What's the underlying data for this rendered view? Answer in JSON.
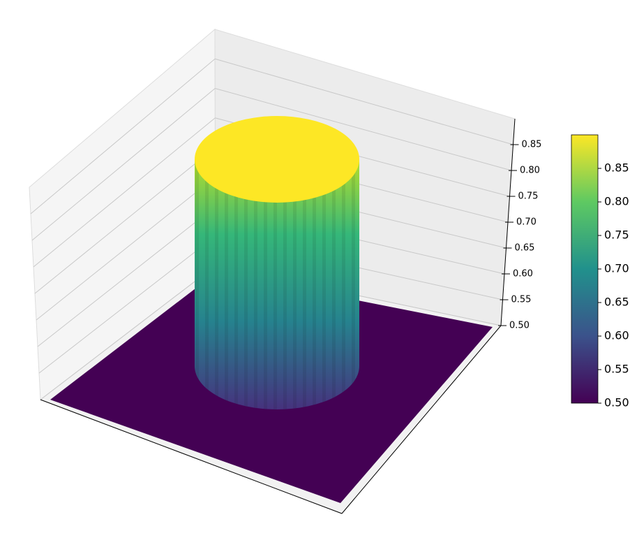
{
  "chart_data": {
    "type": "surface",
    "colormap": "viridis",
    "values": {
      "floor": 0.5,
      "plateau": 0.9
    },
    "zlim": [
      0.5,
      0.9
    ],
    "zticks": [
      {
        "value": 0.5,
        "label": "0.50"
      },
      0.55,
      {
        "value": 0.6,
        "label": "0.60"
      },
      0.65,
      {
        "value": 0.7,
        "label": "0.70"
      },
      0.75,
      {
        "value": 0.8,
        "label": "0.80"
      },
      0.85
    ],
    "grid": true,
    "colorbar": {
      "lim": [
        0.5,
        0.9
      ],
      "ticks": [
        {
          "value": 0.5,
          "label": "0.50"
        },
        0.55,
        {
          "value": 0.6,
          "label": "0.60"
        },
        0.65,
        {
          "value": 0.7,
          "label": "0.70"
        },
        0.75,
        {
          "value": 0.8,
          "label": "0.80"
        },
        0.85
      ]
    }
  }
}
